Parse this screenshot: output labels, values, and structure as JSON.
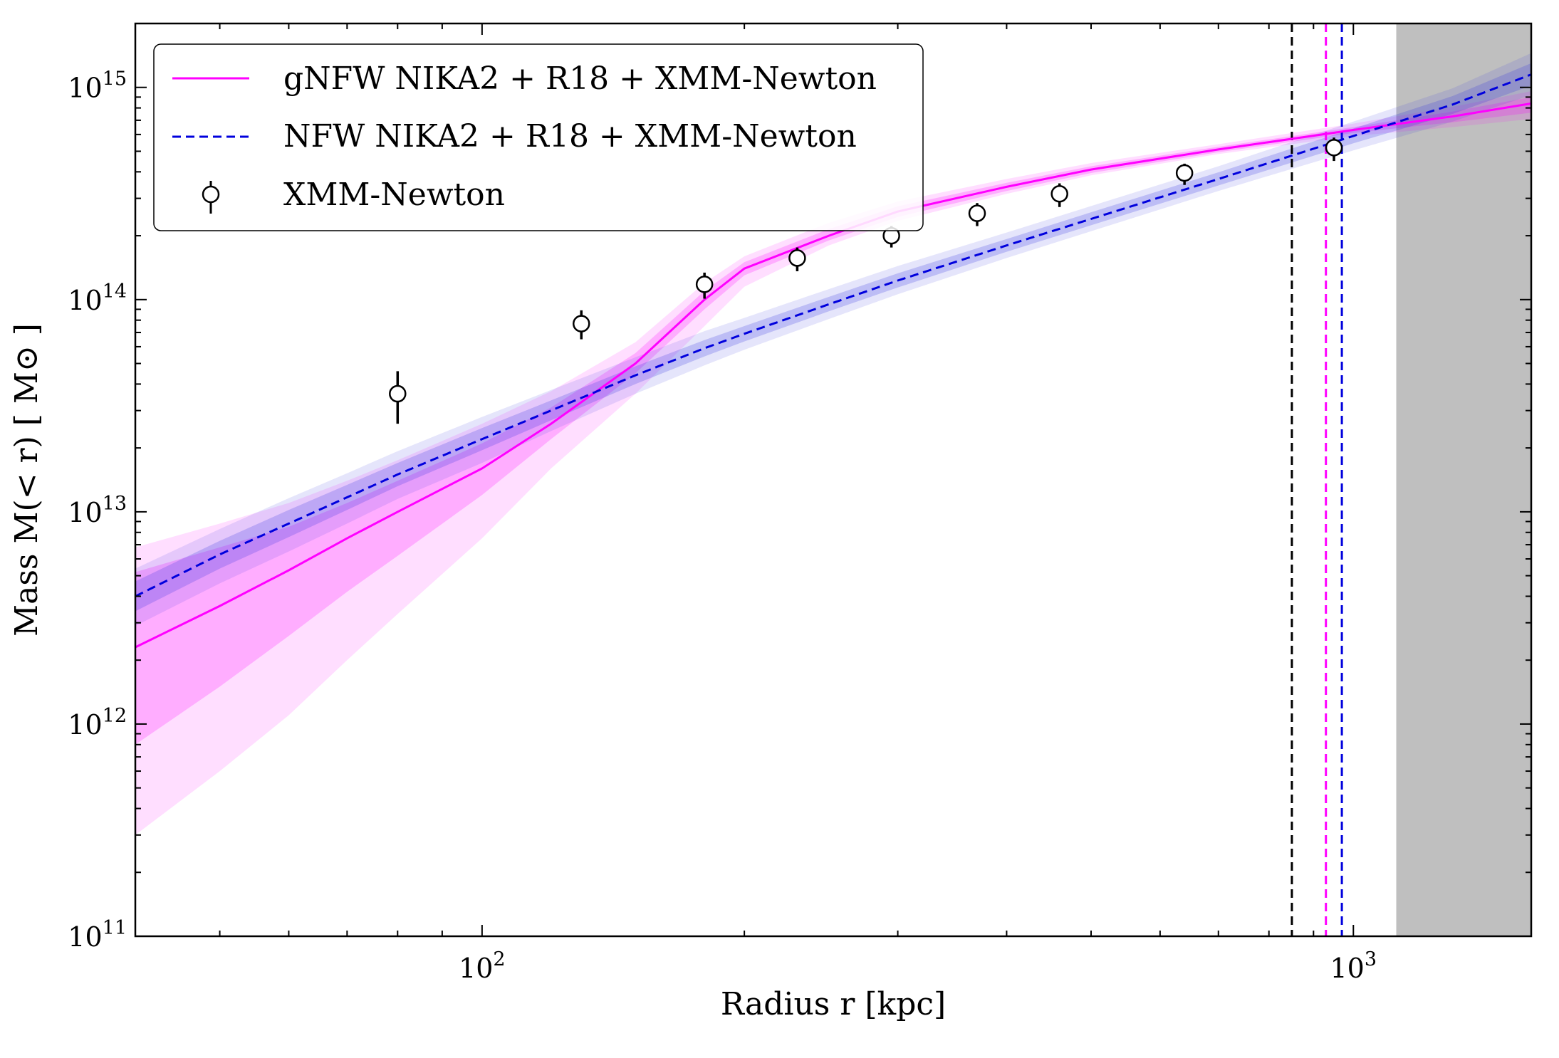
{
  "chart_data": {
    "type": "line",
    "title": "",
    "xlabel": "Radius r [kpc]",
    "ylabel": "Mass M(< r) [ M⊙ ]",
    "x_scale": "log",
    "y_scale": "log",
    "xlim": [
      40,
      1600
    ],
    "ylim": [
      100000000000.0,
      2000000000000000.0
    ],
    "x_ticks": [
      {
        "base": "10",
        "exp": "2",
        "value": 100
      },
      {
        "base": "10",
        "exp": "3",
        "value": 1000
      }
    ],
    "y_ticks": [
      {
        "base": "10",
        "exp": "11",
        "value": 100000000000.0
      },
      {
        "base": "10",
        "exp": "12",
        "value": 1000000000000.0
      },
      {
        "base": "10",
        "exp": "13",
        "value": 10000000000000.0
      },
      {
        "base": "10",
        "exp": "14",
        "value": 100000000000000.0
      },
      {
        "base": "10",
        "exp": "15",
        "value": 1000000000000000.0
      }
    ],
    "legend_position": "top-left",
    "series": [
      {
        "name": "gNFW NIKA2 + R18 + XMM-Newton",
        "kind": "line",
        "color": "#ff00ff",
        "dash": "solid",
        "x": [
          40,
          50,
          60,
          70,
          80,
          100,
          120,
          150,
          180,
          200,
          250,
          300,
          400,
          500,
          700,
          1000,
          1300,
          1600
        ],
        "y": [
          2300000000000.0,
          3600000000000.0,
          5300000000000.0,
          7500000000000.0,
          10000000000000.0,
          16000000000000.0,
          26000000000000.0,
          50000000000000.0,
          100000000000000.0,
          140000000000000.0,
          200000000000000.0,
          260000000000000.0,
          340000000000000.0,
          410000000000000.0,
          510000000000000.0,
          630000000000000.0,
          730000000000000.0,
          840000000000000.0
        ],
        "band_1sigma_low": [
          800000000000.0,
          1500000000000.0,
          2600000000000.0,
          4200000000000.0,
          6200000000000.0,
          12000000000000.0,
          22000000000000.0,
          45000000000000.0,
          90000000000000.0,
          130000000000000.0,
          190000000000000.0,
          245000000000000.0,
          325000000000000.0,
          395000000000000.0,
          495000000000000.0,
          610000000000000.0,
          685000000000000.0,
          760000000000000.0
        ],
        "band_1sigma_high": [
          5200000000000.0,
          6800000000000.0,
          8500000000000.0,
          11000000000000.0,
          14000000000000.0,
          21000000000000.0,
          31000000000000.0,
          56000000000000.0,
          110000000000000.0,
          150000000000000.0,
          215000000000000.0,
          275000000000000.0,
          355000000000000.0,
          425000000000000.0,
          525000000000000.0,
          650000000000000.0,
          770000000000000.0,
          900000000000000.0
        ],
        "band_2sigma_low": [
          300000000000.0,
          600000000000.0,
          1100000000000.0,
          2000000000000.0,
          3300000000000.0,
          7500000000000.0,
          16000000000000.0,
          36000000000000.0,
          75000000000000.0,
          115000000000000.0,
          180000000000000.0,
          235000000000000.0,
          315000000000000.0,
          385000000000000.0,
          485000000000000.0,
          590000000000000.0,
          650000000000000.0,
          710000000000000.0
        ],
        "band_2sigma_high": [
          6800000000000.0,
          8800000000000.0,
          11000000000000.0,
          14000000000000.0,
          17500000000000.0,
          26000000000000.0,
          37000000000000.0,
          63000000000000.0,
          120000000000000.0,
          160000000000000.0,
          230000000000000.0,
          290000000000000.0,
          370000000000000.0,
          440000000000000.0,
          540000000000000.0,
          675000000000000.0,
          810000000000000.0,
          960000000000000.0
        ],
        "band_color": "#ff00ff"
      },
      {
        "name": "NFW NIKA2 + R18 + XMM-Newton",
        "kind": "line",
        "color": "#0000dd",
        "dash": "dashed",
        "x": [
          40,
          50,
          60,
          70,
          80,
          100,
          120,
          150,
          180,
          200,
          250,
          300,
          400,
          500,
          700,
          1000,
          1300,
          1600
        ],
        "y": [
          4000000000000.0,
          6300000000000.0,
          8800000000000.0,
          11700000000000.0,
          15000000000000.0,
          22000000000000.0,
          30000000000000.0,
          44000000000000.0,
          59000000000000.0,
          69000000000000.0,
          95000000000000.0,
          123000000000000.0,
          180000000000000.0,
          240000000000000.0,
          370000000000000.0,
          590000000000000.0,
          830000000000000.0,
          1150000000000000.0
        ],
        "band_1sigma_low": [
          3400000000000.0,
          5400000000000.0,
          7600000000000.0,
          10200000000000.0,
          13200000000000.0,
          19500000000000.0,
          27000000000000.0,
          40000000000000.0,
          54000000000000.0,
          63500000000000.0,
          88000000000000.0,
          114000000000000.0,
          168000000000000.0,
          224000000000000.0,
          345000000000000.0,
          545000000000000.0,
          750000000000000.0,
          1020000000000000.0
        ],
        "band_1sigma_high": [
          4700000000000.0,
          7300000000000.0,
          10200000000000.0,
          13400000000000.0,
          17000000000000.0,
          24800000000000.0,
          33500000000000.0,
          48500000000000.0,
          64500000000000.0,
          75000000000000.0,
          103000000000000.0,
          133000000000000.0,
          193000000000000.0,
          258000000000000.0,
          398000000000000.0,
          640000000000000.0,
          910000000000000.0,
          1300000000000000.0
        ],
        "band_2sigma_low": [
          2900000000000.0,
          4600000000000.0,
          6500000000000.0,
          8800000000000.0,
          11500000000000.0,
          17000000000000.0,
          24000000000000.0,
          36000000000000.0,
          49000000000000.0,
          58000000000000.0,
          81000000000000.0,
          106000000000000.0,
          157000000000000.0,
          210000000000000.0,
          325000000000000.0,
          505000000000000.0,
          690000000000000.0,
          920000000000000.0
        ],
        "band_2sigma_high": [
          5400000000000.0,
          8300000000000.0,
          11600000000000.0,
          15200000000000.0,
          19300000000000.0,
          28000000000000.0,
          37500000000000.0,
          53500000000000.0,
          71000000000000.0,
          82000000000000.0,
          112000000000000.0,
          144000000000000.0,
          207000000000000.0,
          276000000000000.0,
          425000000000000.0,
          690000000000000.0,
          990000000000000.0,
          1450000000000000.0
        ],
        "band_color": "#3333dd"
      },
      {
        "name": "XMM-Newton",
        "kind": "errorbar",
        "color": "#000000",
        "x": [
          80,
          130,
          180,
          230,
          295,
          370,
          460,
          640,
          950
        ],
        "y": [
          36000000000000.0,
          77000000000000.0,
          118000000000000.0,
          157000000000000.0,
          200000000000000.0,
          255000000000000.0,
          315000000000000.0,
          395000000000000.0,
          520000000000000.0
        ],
        "yerr_low": [
          10000000000000.0,
          12000000000000.0,
          17000000000000.0,
          21000000000000.0,
          24000000000000.0,
          33000000000000.0,
          42000000000000.0,
          48000000000000.0,
          70000000000000.0
        ],
        "yerr_high": [
          10000000000000.0,
          12000000000000.0,
          16000000000000.0,
          19000000000000.0,
          22000000000000.0,
          30000000000000.0,
          38000000000000.0,
          42000000000000.0,
          60000000000000.0
        ]
      }
    ],
    "vertical_lines": [
      {
        "x": 850,
        "color": "#000000",
        "dash": "dashed"
      },
      {
        "x": 930,
        "color": "#ff00ff",
        "dash": "dashed"
      },
      {
        "x": 970,
        "color": "#0000dd",
        "dash": "dashed"
      }
    ],
    "shaded_region": {
      "x_from": 1120,
      "x_to": 1600,
      "color": "#bfbfbf"
    }
  }
}
